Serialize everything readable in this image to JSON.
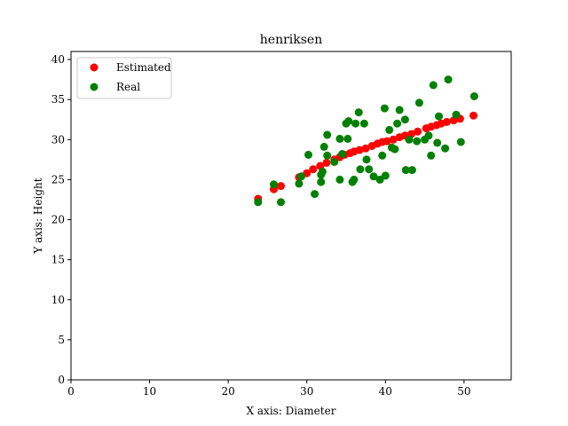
{
  "chart_data": {
    "type": "scatter",
    "title": "henriksen",
    "xlabel": "X axis: Diameter",
    "ylabel": "Y axis: Height",
    "xlim": [
      0,
      56
    ],
    "ylim": [
      0,
      41
    ],
    "xticks": [
      0,
      10,
      20,
      30,
      40,
      50
    ],
    "yticks": [
      0,
      5,
      10,
      15,
      20,
      25,
      30,
      35,
      40
    ],
    "legend": {
      "position": "top-left"
    },
    "grid": false,
    "series": [
      {
        "name": "Estimated",
        "color": "#ff0000",
        "points": [
          [
            23.8,
            22.6
          ],
          [
            25.8,
            23.8
          ],
          [
            26.7,
            24.2
          ],
          [
            29.0,
            25.3
          ],
          [
            30.0,
            25.8
          ],
          [
            30.8,
            26.3
          ],
          [
            31.7,
            26.7
          ],
          [
            32.5,
            27.1
          ],
          [
            33.5,
            27.5
          ],
          [
            34.2,
            27.8
          ],
          [
            34.8,
            28.1
          ],
          [
            35.5,
            28.3
          ],
          [
            36.0,
            28.5
          ],
          [
            36.7,
            28.7
          ],
          [
            37.5,
            28.9
          ],
          [
            38.3,
            29.2
          ],
          [
            39.0,
            29.5
          ],
          [
            39.6,
            29.7
          ],
          [
            40.2,
            29.8
          ],
          [
            41.0,
            30.0
          ],
          [
            41.8,
            30.3
          ],
          [
            42.5,
            30.5
          ],
          [
            43.3,
            30.7
          ],
          [
            44.1,
            31.0
          ],
          [
            45.2,
            31.4
          ],
          [
            45.8,
            31.6
          ],
          [
            46.5,
            31.8
          ],
          [
            47.1,
            32.0
          ],
          [
            47.8,
            32.2
          ],
          [
            48.7,
            32.4
          ],
          [
            49.5,
            32.6
          ],
          [
            51.2,
            33.0
          ]
        ]
      },
      {
        "name": "Real",
        "color": "#008000",
        "points": [
          [
            23.8,
            22.2
          ],
          [
            25.8,
            24.4
          ],
          [
            26.7,
            22.2
          ],
          [
            29.0,
            24.5
          ],
          [
            29.3,
            25.4
          ],
          [
            30.2,
            28.1
          ],
          [
            31.0,
            23.2
          ],
          [
            31.8,
            25.6
          ],
          [
            31.8,
            24.7
          ],
          [
            32.0,
            26.0
          ],
          [
            32.2,
            29.1
          ],
          [
            32.6,
            30.6
          ],
          [
            32.6,
            28.0
          ],
          [
            33.5,
            27.2
          ],
          [
            34.2,
            30.1
          ],
          [
            34.2,
            25.0
          ],
          [
            34.5,
            28.2
          ],
          [
            35.0,
            32.0
          ],
          [
            35.2,
            30.1
          ],
          [
            35.3,
            32.3
          ],
          [
            35.8,
            24.7
          ],
          [
            36.0,
            25.0
          ],
          [
            36.2,
            32.0
          ],
          [
            36.6,
            33.4
          ],
          [
            36.8,
            26.3
          ],
          [
            37.3,
            32.0
          ],
          [
            37.6,
            27.5
          ],
          [
            37.9,
            26.3
          ],
          [
            38.5,
            25.4
          ],
          [
            39.3,
            25.0
          ],
          [
            39.6,
            28.0
          ],
          [
            39.9,
            33.9
          ],
          [
            40.0,
            25.5
          ],
          [
            40.5,
            31.2
          ],
          [
            40.8,
            29.0
          ],
          [
            41.2,
            28.8
          ],
          [
            41.5,
            32.0
          ],
          [
            41.8,
            33.7
          ],
          [
            42.5,
            32.5
          ],
          [
            42.6,
            26.2
          ],
          [
            43.0,
            30.0
          ],
          [
            43.4,
            26.2
          ],
          [
            44.0,
            29.8
          ],
          [
            44.3,
            34.6
          ],
          [
            45.0,
            30.0
          ],
          [
            45.5,
            30.5
          ],
          [
            45.8,
            28.0
          ],
          [
            46.1,
            36.8
          ],
          [
            46.6,
            29.6
          ],
          [
            46.8,
            32.9
          ],
          [
            47.6,
            28.9
          ],
          [
            48.0,
            37.5
          ],
          [
            49.0,
            33.1
          ],
          [
            49.6,
            29.7
          ],
          [
            51.3,
            35.4
          ]
        ]
      }
    ]
  }
}
